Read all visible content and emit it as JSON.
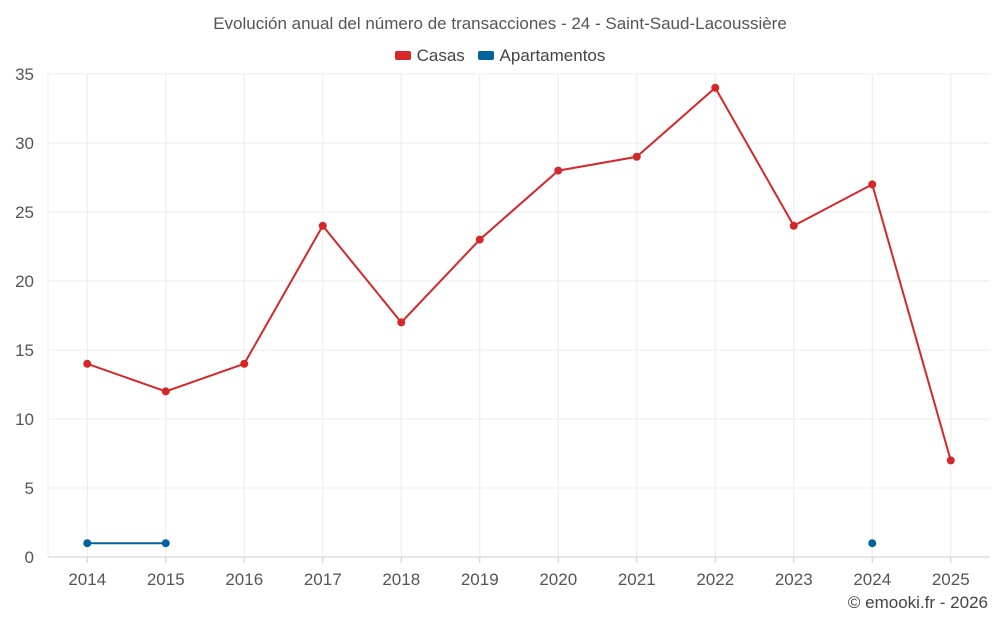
{
  "chart_data": {
    "type": "line",
    "title": "Evolución anual del número de transacciones - 24 - Saint-Saud-Lacoussière",
    "categories": [
      "2014",
      "2015",
      "2016",
      "2017",
      "2018",
      "2019",
      "2020",
      "2021",
      "2022",
      "2023",
      "2024",
      "2025"
    ],
    "series": [
      {
        "name": "Casas",
        "color": "#d62728",
        "values": [
          14,
          12,
          14,
          24,
          17,
          23,
          28,
          29,
          34,
          24,
          27,
          7
        ]
      },
      {
        "name": "Apartamentos",
        "color": "#00639b",
        "values": [
          1,
          1,
          null,
          null,
          null,
          null,
          null,
          null,
          null,
          null,
          1,
          null
        ]
      }
    ],
    "ylim": [
      0,
      35
    ],
    "yticks": [
      0,
      5,
      10,
      15,
      20,
      25,
      30,
      35
    ],
    "xlabel": "",
    "ylabel": "",
    "grid": true,
    "legend": "top-center"
  },
  "credit": "© emooki.fr - 2026"
}
